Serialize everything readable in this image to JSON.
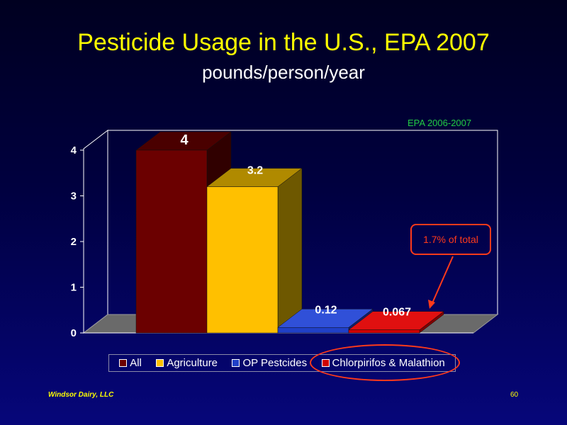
{
  "slide": {
    "title": "Pesticide Usage in the U.S., EPA 2007",
    "subtitle": "pounds/person/year",
    "source_note": "EPA 2006-2007",
    "callout": "1.7% of total",
    "footer_left": "Windsor Dairy, LLC",
    "page_number": "60"
  },
  "chart_data": {
    "type": "bar",
    "categories": [
      "All",
      "Agriculture",
      "OP Pestcides",
      "Chlorpirifos & Malathion"
    ],
    "values": [
      4,
      3.2,
      0.12,
      0.067
    ],
    "value_labels": [
      "4",
      "3.2",
      "0.12",
      "0.067"
    ],
    "y_ticks": [
      "0",
      "1",
      "2",
      "3",
      "4"
    ],
    "ylim": [
      0,
      4
    ],
    "legend_position": "bottom",
    "colors": {
      "front": [
        "#6b0000",
        "#ffc000",
        "#2040c8",
        "#d00000"
      ],
      "top": [
        "#4a0000",
        "#b08a00",
        "#3050d8",
        "#e01010"
      ],
      "side": [
        "#300000",
        "#6e5800",
        "#10206a",
        "#800000"
      ],
      "floor": "#6a6a6a",
      "axis": "#ffffff"
    }
  }
}
